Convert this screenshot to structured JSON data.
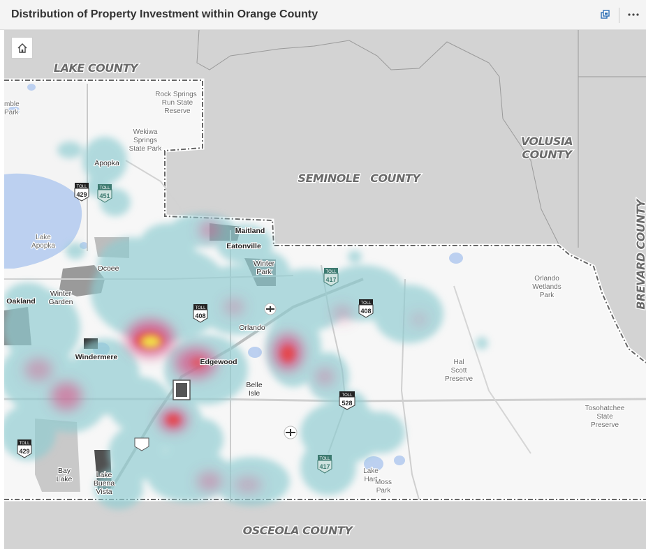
{
  "header": {
    "title": "Distribution of Property Investment within Orange County",
    "window_icon": "restore-window-icon",
    "more_icon": "more-options-icon"
  },
  "map": {
    "home_icon": "home-icon",
    "counties": {
      "lake": "LAKE COUNTY",
      "volusia_1": "VOLUSIA",
      "volusia_2": "COUNTY",
      "seminole": "SEMINOLE   COUNTY",
      "brevard": "BREVARD COUNTY",
      "osceola": "OSCEOLA COUNTY"
    },
    "places": {
      "rock_springs_1": "Rock Springs",
      "rock_springs_2": "Run State",
      "rock_springs_3": "Reserve",
      "wekiwa_1": "Wekiwa",
      "wekiwa_2": "Springs",
      "wekiwa_3": "State Park",
      "mble": "mble",
      "park_left": "Park",
      "lake_apopka_1": "Lake",
      "lake_apopka_2": "Apopka",
      "orlando_wetlands_1": "Orlando",
      "orlando_wetlands_2": "Wetlands",
      "orlando_wetlands_3": "Park",
      "hal_scott_1": "Hal",
      "hal_scott_2": "Scott",
      "hal_scott_3": "Preserve",
      "tosohatchee_1": "Tosohatchee",
      "tosohatchee_2": "State",
      "tosohatchee_3": "Preserve",
      "moss_park_1": "Moss",
      "moss_park_2": "Park",
      "lake_hart_1": "Lake",
      "lake_hart_2": "Hart"
    },
    "cities": {
      "apopka": "Apopka",
      "maitland": "Maitland",
      "eatonville": "Eatonville",
      "winter_park_1": "Winter",
      "winter_park_2": "Park",
      "ocoee": "Ocoee",
      "oakland": "Oakland",
      "winter_garden_1": "Winter",
      "winter_garden_2": "Garden",
      "orlando": "Orlando",
      "windermere": "Windermere",
      "edgewood": "Edgewood",
      "belle_isle_1": "Belle",
      "belle_isle_2": "Isle",
      "bay_lake_1": "Bay",
      "bay_lake_2": "Lake",
      "lake_buena_vista_1": "Lake",
      "lake_buena_vista_2": "Buena",
      "lake_buena_vista_3": "Vista"
    },
    "shields": {
      "toll": "TOLL",
      "r429_top": "429",
      "r451": "451",
      "r417_north": "417",
      "r408_west": "408",
      "r408_east": "408",
      "r528": "528",
      "r417_south": "417",
      "r429_bottom": "429"
    },
    "colors": {
      "background_gray": "#d3d3d3",
      "county_fill": "#ffffff",
      "water": "#bcd0f0",
      "heat_low": "#8fccd1",
      "heat_mid": "#d85a8c",
      "heat_high": "#f2e14a"
    }
  }
}
